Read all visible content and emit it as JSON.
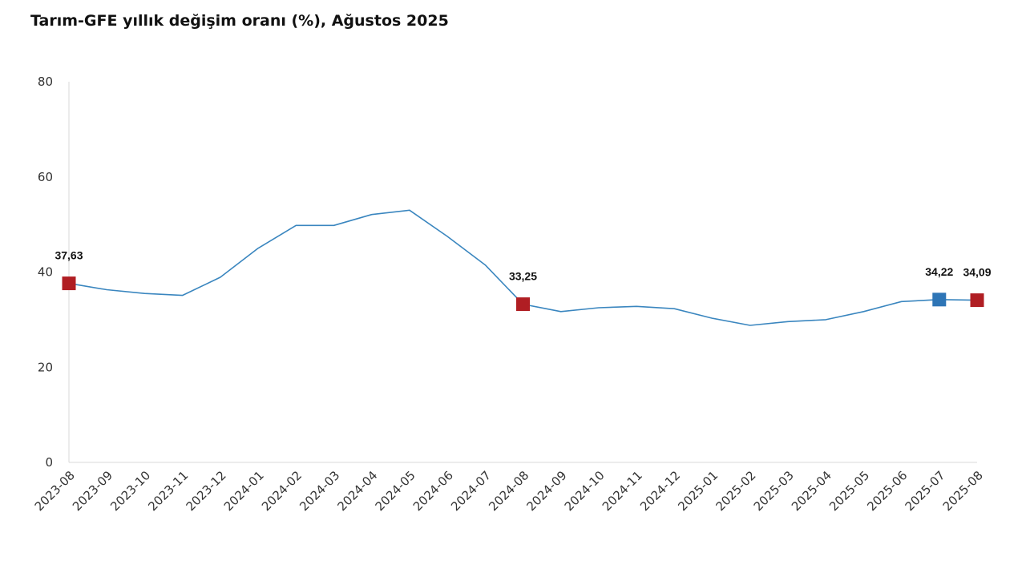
{
  "chart_data": {
    "type": "line",
    "title": "Tarım-GFE yıllık değişim oranı (%), Ağustos 2025",
    "xlabel": "",
    "ylabel": "",
    "ylim": [
      0,
      80
    ],
    "yticks": [
      0,
      20,
      40,
      60,
      80
    ],
    "grid": false,
    "legend": "none",
    "categories": [
      "2023-08",
      "2023-09",
      "2023-10",
      "2023-11",
      "2023-12",
      "2024-01",
      "2024-02",
      "2024-03",
      "2024-04",
      "2024-05",
      "2024-06",
      "2024-07",
      "2024-08",
      "2024-09",
      "2024-10",
      "2024-11",
      "2024-12",
      "2025-01",
      "2025-02",
      "2025-03",
      "2025-04",
      "2025-05",
      "2025-06",
      "2025-07",
      "2025-08"
    ],
    "series": [
      {
        "values": [
          37.63,
          36.3,
          35.5,
          35.1,
          38.9,
          45.0,
          49.8,
          49.8,
          52.1,
          53.0,
          47.5,
          41.5,
          33.25,
          31.7,
          32.5,
          32.8,
          32.3,
          30.3,
          28.8,
          29.6,
          30.0,
          31.7,
          33.8,
          34.22,
          34.09
        ],
        "color": "#3a86bf"
      }
    ],
    "highlight_points": [
      {
        "index": 0,
        "label": "37,63",
        "color": "#b01e23"
      },
      {
        "index": 12,
        "label": "33,25",
        "color": "#b01e23"
      },
      {
        "index": 23,
        "label": "34,22",
        "color": "#2e75b6"
      },
      {
        "index": 24,
        "label": "34,09",
        "color": "#b01e23"
      }
    ],
    "axis_color": "#d9d9d9"
  }
}
